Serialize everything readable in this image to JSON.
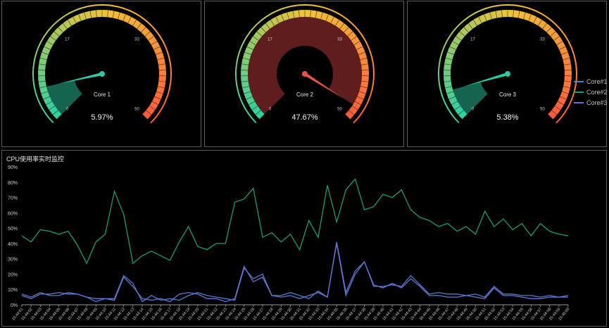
{
  "gauges": [
    {
      "name": "Core 1",
      "value": 5.97,
      "value_text": "5.97%",
      "ticks": [
        "0",
        "17",
        "33",
        "50"
      ],
      "needle_color": "#2ec7a4",
      "fill_color": "#27c8a0"
    },
    {
      "name": "Core 2",
      "value": 47.67,
      "value_text": "47.67%",
      "ticks": [
        "0",
        "17",
        "33",
        "50"
      ],
      "needle_color": "#e8504a",
      "fill_color": "#c0393b"
    },
    {
      "name": "Core 3",
      "value": 5.38,
      "value_text": "5.38%",
      "ticks": [
        "0",
        "17",
        "33",
        "50"
      ],
      "needle_color": "#2ec7a4",
      "fill_color": "#27c8a0"
    }
  ],
  "gauge_scale": {
    "min": 0,
    "max": 50
  },
  "chart_data": {
    "type": "line",
    "title": "CPU使用率实时监控",
    "ylim": [
      0,
      90
    ],
    "y_ticks": [
      "0%",
      "10%",
      "20%",
      "30%",
      "40%",
      "50%",
      "60%",
      "70%",
      "80%",
      "90%"
    ],
    "grid": false,
    "legend_position": "right",
    "x": [
      "15:44:01",
      "15:44:02",
      "15:44:03",
      "15:44:04",
      "15:44:05",
      "15:44:06",
      "15:44:07",
      "15:44:08",
      "15:44:09",
      "15:44:10",
      "15:44:11",
      "15:44:12",
      "15:44:13",
      "15:44:14",
      "15:44:15",
      "15:44:16",
      "15:44:17",
      "15:44:18",
      "15:44:19",
      "15:44:20",
      "15:44:21",
      "15:44:22",
      "15:44:23",
      "15:44:24",
      "15:44:25",
      "15:44:26",
      "15:44:27",
      "15:44:28",
      "15:44:29",
      "15:44:30",
      "15:44:31",
      "15:44:32",
      "15:44:33",
      "15:44:34",
      "15:44:35",
      "15:44:36",
      "15:44:37",
      "15:44:38",
      "15:44:39",
      "15:44:40",
      "15:44:41",
      "15:44:42",
      "15:44:43",
      "15:44:44",
      "15:44:45",
      "15:44:46",
      "15:44:47",
      "15:44:48",
      "15:44:49",
      "15:44:50",
      "15:44:51",
      "15:44:52",
      "15:44:53",
      "15:44:54",
      "15:44:55",
      "15:44:56",
      "15:44:57",
      "15:44:58",
      "15:44:59",
      "15:45:00"
    ],
    "series": [
      {
        "name": "Core#1",
        "color": "#4a7fc1",
        "values": [
          7,
          5,
          8,
          6,
          6,
          8,
          7,
          5,
          2,
          4,
          4,
          19,
          14,
          2,
          6,
          3,
          4,
          3,
          6,
          8,
          6,
          5,
          4,
          3,
          24,
          17,
          20,
          6,
          6,
          8,
          6,
          4,
          9,
          5,
          40,
          6,
          20,
          28,
          12,
          12,
          13,
          12,
          19,
          13,
          7,
          8,
          7,
          7,
          6,
          7,
          5,
          12,
          7,
          7,
          6,
          6,
          5,
          6,
          5,
          6
        ]
      },
      {
        "name": "Core#2",
        "color": "#1a9c74",
        "values": [
          45,
          41,
          49,
          48,
          46,
          48,
          39,
          27,
          41,
          46,
          74,
          59,
          27,
          32,
          35,
          32,
          29,
          41,
          51,
          38,
          36,
          40,
          40,
          67,
          69,
          76,
          44,
          47,
          41,
          46,
          36,
          55,
          44,
          78,
          54,
          75,
          82,
          62,
          64,
          72,
          70,
          75,
          62,
          57,
          55,
          51,
          53,
          48,
          51,
          46,
          61,
          51,
          56,
          49,
          53,
          45,
          53,
          48,
          46,
          45
        ]
      },
      {
        "name": "Core#3",
        "color": "#6b6fd8",
        "values": [
          6,
          4,
          7,
          7,
          8,
          7,
          7,
          5,
          4,
          4,
          3,
          18,
          12,
          4,
          3,
          4,
          2,
          7,
          8,
          7,
          4,
          4,
          2,
          4,
          25,
          15,
          18,
          6,
          5,
          6,
          4,
          6,
          8,
          5,
          41,
          8,
          22,
          28,
          13,
          11,
          14,
          11,
          17,
          12,
          6,
          6,
          5,
          5,
          6,
          5,
          4,
          11,
          6,
          6,
          5,
          4,
          4,
          5,
          5,
          5
        ]
      }
    ]
  }
}
